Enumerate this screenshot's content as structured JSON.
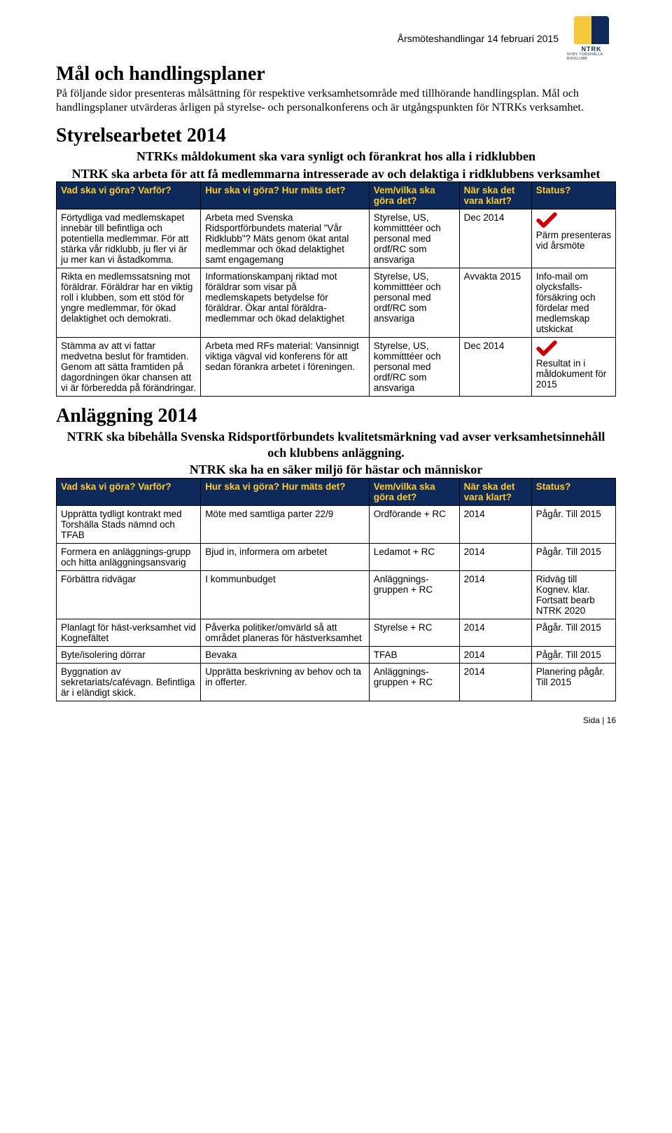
{
  "header": {
    "docTitle": "Årsmöteshandlingar 14 februari 2015",
    "logoLetters": "NTRK",
    "logoSub": "NYBY TORSHÄLLA RIDKLUBB"
  },
  "pageTitle": "Mål och handlingsplaner",
  "intro": "På följande sidor presenteras målsättning för respektive verksamhetsområde med tillhörande handlingsplan. Mål och handlingsplaner utvärderas årligen på styrelse- och personalkonferens och är utgångspunkten för NTRKs verksamhet.",
  "section1": {
    "title": "Styrelsearbetet 2014",
    "sub1": "NTRKs måldokument ska vara synligt och förankrat hos alla i ridklubben",
    "sub2": "NTRK ska arbeta för att få medlemmarna intresserade av och delaktiga i ridklubbens verksamhet"
  },
  "section2": {
    "title": "Anläggning 2014",
    "sub1": "NTRK ska bibehålla Svenska Ridsportförbundets kvalitetsmärkning vad avser verksamhetsinnehåll och klubbens anläggning.",
    "sub2": "NTRK ska ha en säker miljö för hästar och människor"
  },
  "columns": {
    "what": "Vad ska vi göra? Varför?",
    "how": "Hur ska vi göra? Hur mäts det?",
    "who": "Vem/vilka ska göra det?",
    "when": "När ska det vara klart?",
    "status": "Status?"
  },
  "table1": [
    {
      "what": "Förtydliga vad medlemskapet innebär till befintliga och potentiella medlemmar. För att stärka vår ridklubb, ju fler vi är ju mer kan vi åstadkomma.",
      "how": "Arbeta med Svenska Ridsportförbundets material \"Vår Ridklubb\"? Mäts genom ökat antal medlemmar och ökad delaktighet samt engagemang",
      "who": "Styrelse, US, kommitttéer och personal med ordf/RC som ansvariga",
      "when": "Dec 2014",
      "statusCheck": true,
      "status": "Pärm presenteras vid årsmöte"
    },
    {
      "what": "Rikta en medlemssatsning mot föräldrar. Föräldrar har en viktig roll i klubben, som ett stöd för yngre medlemmar, för ökad delaktighet och demokrati.",
      "how": "Informationskampanj riktad mot föräldrar som visar på medlemskapets betydelse för föräldrar. Ökar antal föräldra-medlemmar och ökad delaktighet",
      "who": "Styrelse, US, kommitttéer och personal med ordf/RC som ansvariga",
      "when": "Avvakta 2015",
      "statusCheck": false,
      "status": "Info-mail om olycksfalls-försäkring och fördelar med medlemskap utskickat"
    },
    {
      "what": "Stämma av att vi fattar medvetna beslut för framtiden. Genom att sätta framtiden på dagordningen ökar chansen att vi är förberedda på förändringar.",
      "how": "Arbeta med RFs material: Vansinnigt viktiga vägval vid konferens för att sedan förankra arbetet i föreningen.",
      "who": "Styrelse, US, kommitttéer och personal med ordf/RC som ansvariga",
      "when": "Dec 2014",
      "statusCheck": true,
      "status": "Resultat in i måldokument för 2015"
    }
  ],
  "table2": [
    {
      "what": "Upprätta tydligt kontrakt med Torshälla Stads nämnd och TFAB",
      "how": "Möte med samtliga parter 22/9",
      "who": "Ordförande + RC",
      "when": "2014",
      "status": "Pågår. Till 2015"
    },
    {
      "what": "Formera en anläggnings-grupp och hitta anläggningsansvarig",
      "how": "Bjud in, informera om arbetet",
      "who": "Ledamot + RC",
      "when": "2014",
      "status": "Pågår. Till 2015"
    },
    {
      "what": "Förbättra ridvägar",
      "how": "I kommunbudget",
      "who": "Anläggnings-gruppen + RC",
      "when": "2014",
      "status": "Ridväg till Kognev. klar. Fortsatt bearb NTRK 2020"
    },
    {
      "what": "Planlagt för häst-verksamhet vid Kognefältet",
      "how": "Påverka politiker/omvärld så att området planeras för hästverksamhet",
      "who": "Styrelse + RC",
      "when": "2014",
      "status": "Pågår. Till 2015"
    },
    {
      "what": "Byte/isolering dörrar",
      "how": "Bevaka",
      "who": "TFAB",
      "when": "2014",
      "status": "Pågår. Till 2015"
    },
    {
      "what": "Byggnation av sekretariats/cafévagn. Befintliga är i eländigt skick.",
      "how": "Upprätta beskrivning av behov och ta in offerter.",
      "who": "Anläggnings-gruppen + RC",
      "when": "2014",
      "status": "Planering pågår. Till 2015"
    }
  ],
  "footer": "Sida | 16"
}
